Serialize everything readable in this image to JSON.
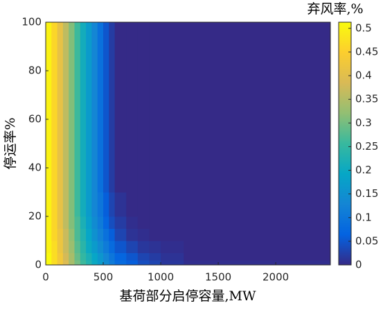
{
  "chart_data": {
    "type": "heatmap",
    "xlabel": "基荷部分启停容量,MW",
    "ylabel": "停运率%",
    "colorbar_label": "弃风率,%",
    "xbins": [
      0,
      50,
      100,
      150,
      200,
      250,
      300,
      350,
      400,
      450,
      500,
      550,
      600,
      700,
      800,
      900,
      1000,
      1200,
      2475
    ],
    "ybins": [
      0,
      2,
      5,
      10,
      15,
      20,
      30,
      100
    ],
    "values": [
      [
        0.51,
        0.47,
        0.43,
        0.39,
        0.34,
        0.3,
        0.26,
        0.23,
        0.2,
        0.17,
        0.14,
        0.11,
        0.08,
        0.06,
        0.04,
        0.03,
        0.015,
        0.005
      ],
      [
        0.51,
        0.47,
        0.43,
        0.38,
        0.34,
        0.29,
        0.25,
        0.22,
        0.19,
        0.16,
        0.13,
        0.1,
        0.07,
        0.05,
        0.03,
        0.02,
        0.01,
        0
      ],
      [
        0.5,
        0.47,
        0.42,
        0.37,
        0.33,
        0.28,
        0.24,
        0.2,
        0.17,
        0.14,
        0.11,
        0.08,
        0.05,
        0.03,
        0.015,
        0.01,
        0.005,
        0
      ],
      [
        0.5,
        0.46,
        0.42,
        0.37,
        0.32,
        0.27,
        0.23,
        0.19,
        0.15,
        0.12,
        0.09,
        0.06,
        0.03,
        0.01,
        0.005,
        0,
        0,
        0
      ],
      [
        0.5,
        0.46,
        0.41,
        0.36,
        0.31,
        0.27,
        0.22,
        0.18,
        0.14,
        0.11,
        0.07,
        0.04,
        0.02,
        0.005,
        0,
        0,
        0,
        0
      ],
      [
        0.5,
        0.46,
        0.41,
        0.36,
        0.31,
        0.26,
        0.21,
        0.17,
        0.13,
        0.1,
        0.06,
        0.03,
        0.01,
        0,
        0,
        0,
        0,
        0
      ],
      [
        0.5,
        0.46,
        0.41,
        0.36,
        0.31,
        0.26,
        0.21,
        0.17,
        0.13,
        0.09,
        0.05,
        0.02,
        0,
        0,
        0,
        0,
        0,
        0
      ]
    ],
    "xlim": [
      0,
      2475
    ],
    "ylim": [
      0,
      100
    ],
    "clim": [
      0,
      0.513
    ],
    "xticks": [
      0,
      500,
      1000,
      1500,
      2000
    ],
    "yticks": [
      0,
      20,
      40,
      60,
      80,
      100
    ],
    "cticks": [
      0,
      0.05,
      0.1,
      0.15,
      0.2,
      0.25,
      0.3,
      0.35,
      0.4,
      0.45,
      0.5
    ],
    "colormap": [
      "#352a87",
      "#0363e1",
      "#1485d4",
      "#06a7c6",
      "#38b99e",
      "#92bf73",
      "#d9ba56",
      "#fcce2e",
      "#f9fb0e"
    ]
  }
}
